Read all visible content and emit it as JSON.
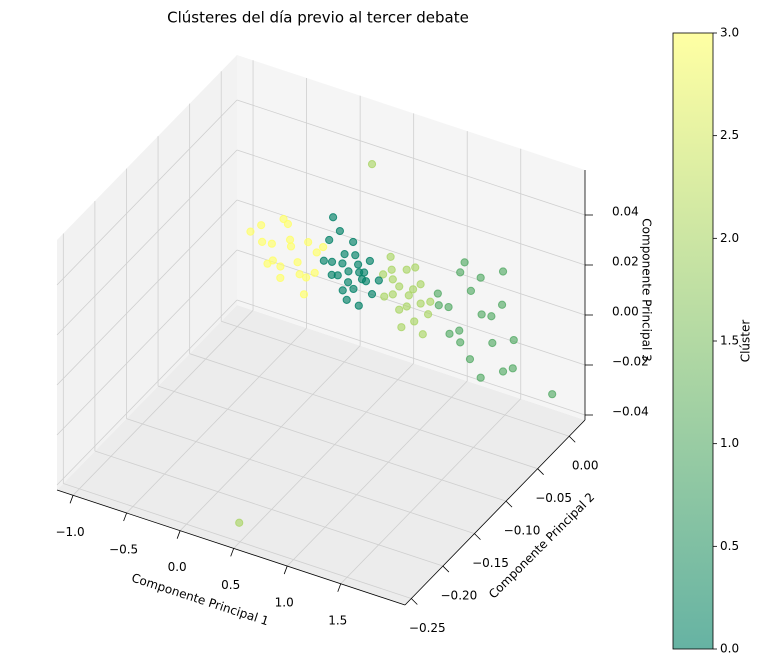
{
  "chart_data": {
    "type": "scatter3d",
    "title": "Clústeres del día previo al tercer debate",
    "xlabel": "Componente Principal 1",
    "ylabel": "Componente Principal 2",
    "zlabel": "Componente Principal 3",
    "colorbar_label": "Clúster",
    "xlim": [
      -1.15,
      2.1
    ],
    "ylim": [
      -0.26,
      0.025
    ],
    "zlim": [
      -0.042,
      0.058
    ],
    "xticks": [
      {
        "value": -1.0,
        "label": "−1.0"
      },
      {
        "value": -0.5,
        "label": "−0.5"
      },
      {
        "value": 0,
        "label": "0.0"
      },
      {
        "value": 0.5,
        "label": "0.5"
      },
      {
        "value": 1,
        "label": "1.0"
      },
      {
        "value": 1.5,
        "label": "1.5"
      }
    ],
    "yticks": [
      {
        "value": -0.25,
        "label": "−0.25"
      },
      {
        "value": -0.2,
        "label": "−0.20"
      },
      {
        "value": -0.15,
        "label": "−0.15"
      },
      {
        "value": -0.1,
        "label": "−0.10"
      },
      {
        "value": -0.05,
        "label": "−0.05"
      },
      {
        "value": 0,
        "label": "0.00"
      }
    ],
    "zticks": [
      {
        "value": -0.04,
        "label": "−0.04"
      },
      {
        "value": -0.02,
        "label": "−0.02"
      },
      {
        "value": 0,
        "label": "0.00"
      },
      {
        "value": 0.02,
        "label": "0.02"
      },
      {
        "value": 0.04,
        "label": "0.04"
      }
    ],
    "clim": [
      0,
      3
    ],
    "colormap": [
      "#008066",
      "#ffff66"
    ],
    "cticks": [
      {
        "value": 0,
        "label": "0.0"
      },
      {
        "value": 0.5,
        "label": "0.5"
      },
      {
        "value": 1,
        "label": "1.0"
      },
      {
        "value": 1.5,
        "label": "1.5"
      },
      {
        "value": 2,
        "label": "2.0"
      },
      {
        "value": 2.5,
        "label": "2.5"
      },
      {
        "value": 3,
        "label": "3.0"
      }
    ],
    "x": [
      -0.7,
      -0.65,
      -0.6,
      -0.55,
      -0.5,
      -0.45,
      -0.42,
      -0.38,
      -0.33,
      -0.3,
      -0.26,
      -0.22,
      -0.18,
      -0.14,
      -0.1,
      -0.6,
      -0.35,
      -0.48,
      -0.2,
      -0.08,
      1.0,
      1.05,
      1.1,
      1.15,
      1.2,
      1.25,
      1.3,
      1.35,
      1.4,
      1.45,
      1.5,
      1.55,
      1.6,
      1.65,
      1.7,
      1.3,
      1.6,
      1.75,
      1.2,
      1.45,
      2.0,
      0.48,
      0.52,
      0.56,
      0.6,
      0.63,
      0.66,
      0.7,
      0.73,
      0.76,
      0.8,
      0.83,
      0.86,
      0.9,
      0.95,
      0.55,
      0.68,
      0.78,
      0.6,
      0.72,
      0.88,
      0.4,
      0.363,
      -0.05,
      0.0,
      0.05,
      0.08,
      0.12,
      0.15,
      0.18,
      0.22,
      0.25,
      0.28,
      0.32,
      0.35,
      0.4,
      0.44,
      0.1,
      0.06,
      0.2,
      0.0,
      0.3,
      0.14,
      0.38,
      0.2,
      0.1,
      0.27,
      0.33
    ],
    "y": [
      -0.03,
      -0.02,
      -0.03,
      -0.02,
      -0.03,
      -0.02,
      -0.03,
      -0.02,
      -0.03,
      -0.02,
      -0.03,
      -0.02,
      -0.03,
      -0.02,
      -0.03,
      -0.02,
      -0.03,
      -0.02,
      -0.03,
      -0.02,
      -0.02,
      -0.03,
      -0.02,
      -0.03,
      -0.02,
      -0.03,
      -0.02,
      -0.03,
      -0.02,
      -0.03,
      -0.02,
      -0.03,
      -0.02,
      -0.03,
      -0.02,
      -0.03,
      -0.02,
      -0.03,
      -0.02,
      -0.03,
      -0.01,
      -0.02,
      -0.025,
      -0.02,
      -0.025,
      -0.02,
      -0.025,
      -0.02,
      -0.025,
      -0.02,
      -0.025,
      -0.02,
      -0.025,
      -0.02,
      -0.025,
      -0.02,
      -0.025,
      -0.02,
      -0.025,
      -0.02,
      -0.025,
      -0.024,
      -0.228,
      -0.024,
      -0.02,
      -0.028,
      -0.024,
      -0.02,
      -0.028,
      -0.024,
      -0.02,
      -0.028,
      -0.024,
      -0.02,
      -0.028,
      -0.024,
      -0.02,
      -0.024,
      -0.028,
      -0.02,
      -0.024,
      -0.028,
      -0.02,
      -0.024,
      -0.028,
      -0.02,
      -0.024,
      -0.028
    ],
    "z": [
      0.008,
      0.002,
      0.012,
      -0.004,
      0.006,
      0.014,
      -0.002,
      0.004,
      0.01,
      -0.006,
      0.002,
      0.008,
      -0.003,
      0.005,
      0.0,
      -0.006,
      0.016,
      -0.01,
      -0.01,
      0.008,
      0.0,
      0.008,
      -0.01,
      0.004,
      0.016,
      -0.004,
      0.01,
      -0.014,
      0.002,
      0.02,
      -0.008,
      0.006,
      -0.018,
      0.012,
      -0.004,
      0.024,
      0.022,
      -0.012,
      -0.012,
      -0.02,
      -0.024,
      0.005,
      -0.002,
      0.008,
      0.0,
      -0.007,
      0.004,
      0.01,
      -0.003,
      0.003,
      -0.008,
      0.006,
      0.0,
      -0.005,
      0.002,
      0.013,
      -0.012,
      0.012,
      0.006,
      0.0,
      -0.012,
      0.049,
      -0.042,
      0.004,
      -0.002,
      0.006,
      0.0,
      0.008,
      -0.004,
      0.003,
      0.009,
      -0.002,
      0.004,
      0.0,
      0.006,
      -0.003,
      0.002,
      0.018,
      0.024,
      0.014,
      0.013,
      -0.008,
      -0.01,
      0.01,
      0.0,
      0.004,
      0.007,
      0.003
    ],
    "c": [
      3,
      3,
      3,
      3,
      3,
      3,
      3,
      3,
      3,
      3,
      3,
      3,
      3,
      3,
      3,
      3,
      3,
      3,
      3,
      3,
      1,
      1,
      1,
      1,
      1,
      1,
      1,
      1,
      1,
      1,
      1,
      1,
      1,
      1,
      1,
      1,
      1,
      1,
      1,
      1,
      1,
      2,
      2,
      2,
      2,
      2,
      2,
      2,
      2,
      2,
      2,
      2,
      2,
      2,
      2,
      2,
      2,
      2,
      2,
      2,
      2,
      2,
      2,
      0,
      0,
      0,
      0,
      0,
      0,
      0,
      0,
      0,
      0,
      0,
      0,
      0,
      0,
      0,
      0,
      0,
      0,
      0,
      0,
      0,
      0,
      0,
      0,
      0
    ]
  }
}
